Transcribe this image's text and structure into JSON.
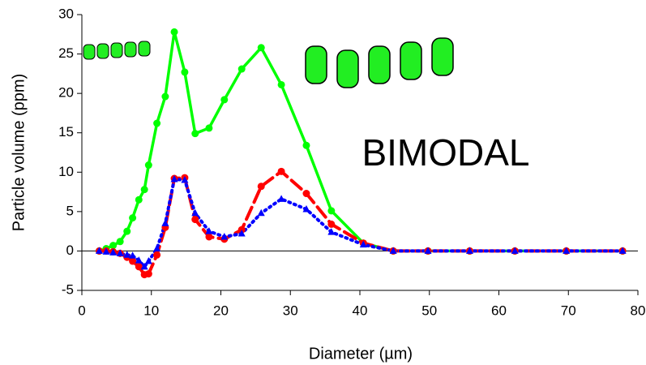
{
  "chart_data": {
    "type": "line",
    "x_label": "Diameter (µm)",
    "y_label": "Particle volume (ppm)",
    "annotation": "BIMODAL",
    "x": [
      2.5,
      3.5,
      4.5,
      5.5,
      6.5,
      7.3,
      8.2,
      9,
      9.6,
      10.8,
      12,
      13.3,
      14.8,
      16.3,
      18.3,
      20.5,
      23,
      25.8,
      28.7,
      32.3,
      35.9,
      40.5,
      44.8,
      49.8,
      55.8,
      62.3,
      69.7,
      77.8
    ],
    "series": [
      {
        "color": "#00ff00",
        "line_style": "solid",
        "marker": "circle",
        "values": [
          0,
          0.3,
          0.7,
          1.2,
          2.5,
          4.2,
          6.5,
          7.8,
          10.9,
          16.2,
          19.6,
          27.8,
          22.7,
          14.9,
          15.6,
          19.2,
          23.1,
          25.8,
          21.1,
          13.4,
          5.1,
          1.0,
          0,
          0,
          0,
          0,
          0,
          0
        ]
      },
      {
        "color": "#ff0000",
        "line_style": "dashed",
        "marker": "circle",
        "values": [
          0,
          0,
          -0.1,
          -0.3,
          -0.8,
          -1.3,
          -2.0,
          -3.0,
          -2.9,
          -0.5,
          3,
          9.2,
          9.3,
          4.0,
          1.8,
          1.5,
          2.7,
          8.2,
          10.1,
          7.3,
          3.4,
          1.0,
          0,
          0,
          0,
          0,
          0,
          0
        ]
      },
      {
        "color": "#0000ff",
        "line_style": "dotted",
        "marker": "triangle",
        "values": [
          0,
          -0.1,
          -0.2,
          -0.3,
          -0.5,
          -0.6,
          -1.2,
          -2.0,
          -1.3,
          0.3,
          3.5,
          9.1,
          9.0,
          4.8,
          2.5,
          1.8,
          2.2,
          4.8,
          6.6,
          5.3,
          2.4,
          0.8,
          0,
          0,
          0,
          0,
          0,
          0
        ]
      }
    ],
    "xlim": [
      0,
      80
    ],
    "xticks": [
      0,
      10,
      20,
      30,
      40,
      50,
      60,
      70,
      80
    ],
    "ylim": [
      -5,
      30
    ],
    "yticks": [
      -5,
      0,
      5,
      10,
      15,
      20,
      25,
      30
    ],
    "zero_line": true
  }
}
